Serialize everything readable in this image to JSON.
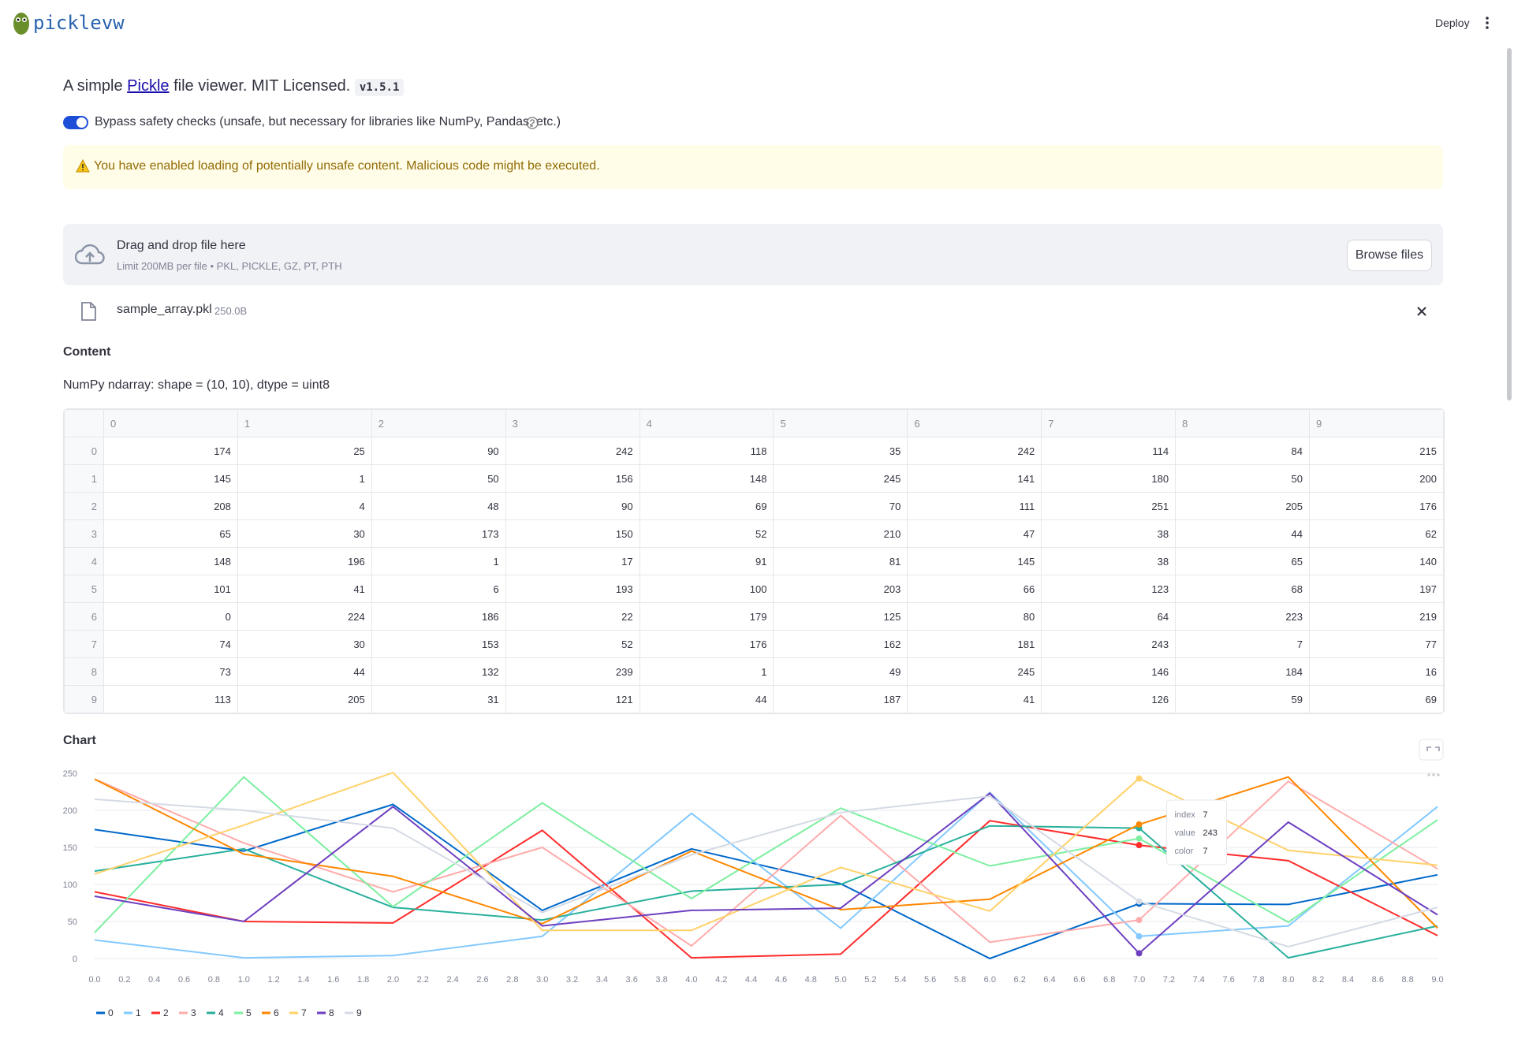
{
  "header": {
    "app_name": "picklevw",
    "deploy": "Deploy"
  },
  "intro": {
    "prefix": "A simple ",
    "link": "Pickle",
    "suffix": " file viewer. MIT Licensed.",
    "version": "v1.5.1"
  },
  "toggle": {
    "label": "Bypass safety checks (unsafe, but necessary for libraries like NumPy, Pandas, etc.)"
  },
  "warning": {
    "text": "You have enabled loading of potentially unsafe content. Malicious code might be executed."
  },
  "uploader": {
    "title": "Drag and drop file here",
    "limit": "Limit 200MB per file • PKL, PICKLE, GZ, PT, PTH",
    "button": "Browse files"
  },
  "file": {
    "name": "sample_array.pkl",
    "size": "250.0B"
  },
  "content": {
    "heading": "Content",
    "description": "NumPy ndarray: shape = (10, 10), dtype = uint8"
  },
  "table": {
    "columns": [
      0,
      1,
      2,
      3,
      4,
      5,
      6,
      7,
      8,
      9
    ],
    "index": [
      0,
      1,
      2,
      3,
      4,
      5,
      6,
      7,
      8,
      9
    ],
    "rows": [
      [
        174,
        25,
        90,
        242,
        118,
        35,
        242,
        114,
        84,
        215
      ],
      [
        145,
        1,
        50,
        156,
        148,
        245,
        141,
        180,
        50,
        200
      ],
      [
        208,
        4,
        48,
        90,
        69,
        70,
        111,
        251,
        205,
        176
      ],
      [
        65,
        30,
        173,
        150,
        52,
        210,
        47,
        38,
        44,
        62
      ],
      [
        148,
        196,
        1,
        17,
        91,
        81,
        145,
        38,
        65,
        140
      ],
      [
        101,
        41,
        6,
        193,
        100,
        203,
        66,
        123,
        68,
        197
      ],
      [
        0,
        224,
        186,
        22,
        179,
        125,
        80,
        64,
        223,
        219
      ],
      [
        74,
        30,
        153,
        52,
        176,
        162,
        181,
        243,
        7,
        77
      ],
      [
        73,
        44,
        132,
        239,
        1,
        49,
        245,
        146,
        184,
        16
      ],
      [
        113,
        205,
        31,
        121,
        44,
        187,
        41,
        126,
        59,
        69
      ]
    ]
  },
  "chart_data": {
    "type": "line",
    "title": "Chart",
    "x": [
      0,
      1,
      2,
      3,
      4,
      5,
      6,
      7,
      8,
      9
    ],
    "xlim": [
      0,
      9
    ],
    "ylim": [
      0,
      250
    ],
    "yticks": [
      0,
      50,
      100,
      150,
      200,
      250
    ],
    "grid": true,
    "legend": "bottom-left",
    "xticks": [
      {
        "value": 0,
        "label": "0.0"
      },
      {
        "value": 0.2,
        "label": "0.2"
      },
      {
        "value": 0.4,
        "label": "0.4"
      },
      {
        "value": 0.6,
        "label": "0.6"
      },
      {
        "value": 0.8,
        "label": "0.8"
      },
      {
        "value": 1,
        "label": "1.0"
      },
      {
        "value": 1.2,
        "label": "1.2"
      },
      {
        "value": 1.4,
        "label": "1.4"
      },
      {
        "value": 1.6,
        "label": "1.6"
      },
      {
        "value": 1.8,
        "label": "1.8"
      },
      {
        "value": 2,
        "label": "2.0"
      },
      {
        "value": 2.2,
        "label": "2.2"
      },
      {
        "value": 2.4,
        "label": "2.4"
      },
      {
        "value": 2.6,
        "label": "2.6"
      },
      {
        "value": 2.8,
        "label": "2.8"
      },
      {
        "value": 3,
        "label": "3.0"
      },
      {
        "value": 3.2,
        "label": "3.2"
      },
      {
        "value": 3.4,
        "label": "3.4"
      },
      {
        "value": 3.6,
        "label": "3.6"
      },
      {
        "value": 3.8,
        "label": "3.8"
      },
      {
        "value": 4,
        "label": "4.0"
      },
      {
        "value": 4.2,
        "label": "4.2"
      },
      {
        "value": 4.4,
        "label": "4.4"
      },
      {
        "value": 4.6,
        "label": "4.6"
      },
      {
        "value": 4.8,
        "label": "4.8"
      },
      {
        "value": 5,
        "label": "5.0"
      },
      {
        "value": 5.2,
        "label": "5.2"
      },
      {
        "value": 5.4,
        "label": "5.4"
      },
      {
        "value": 5.6,
        "label": "5.6"
      },
      {
        "value": 5.8,
        "label": "5.8"
      },
      {
        "value": 6,
        "label": "6.0"
      },
      {
        "value": 6.2,
        "label": "6.2"
      },
      {
        "value": 6.4,
        "label": "6.4"
      },
      {
        "value": 6.6,
        "label": "6.6"
      },
      {
        "value": 6.8,
        "label": "6.8"
      },
      {
        "value": 7,
        "label": "7.0"
      },
      {
        "value": 7.2,
        "label": "7.2"
      },
      {
        "value": 7.4,
        "label": "7.4"
      },
      {
        "value": 7.6,
        "label": "7.6"
      },
      {
        "value": 7.8,
        "label": "7.8"
      },
      {
        "value": 8,
        "label": "8.0"
      },
      {
        "value": 8.2,
        "label": "8.2"
      },
      {
        "value": 8.4,
        "label": "8.4"
      },
      {
        "value": 8.6,
        "label": "8.6"
      },
      {
        "value": 8.8,
        "label": "8.8"
      },
      {
        "value": 9,
        "label": "9.0"
      }
    ],
    "series": [
      {
        "name": "0",
        "color": "#0068c9",
        "values": [
          174,
          145,
          208,
          65,
          148,
          101,
          0,
          74,
          73,
          113
        ]
      },
      {
        "name": "1",
        "color": "#83c9ff",
        "values": [
          25,
          1,
          4,
          30,
          196,
          41,
          224,
          30,
          44,
          205
        ]
      },
      {
        "name": "2",
        "color": "#ff2b2b",
        "values": [
          90,
          50,
          48,
          173,
          1,
          6,
          186,
          153,
          132,
          31
        ]
      },
      {
        "name": "3",
        "color": "#ffabab",
        "values": [
          242,
          156,
          90,
          150,
          17,
          193,
          22,
          52,
          239,
          121
        ]
      },
      {
        "name": "4",
        "color": "#29b09d",
        "values": [
          118,
          148,
          69,
          52,
          91,
          100,
          179,
          176,
          1,
          44
        ]
      },
      {
        "name": "5",
        "color": "#7defa1",
        "values": [
          35,
          245,
          70,
          210,
          81,
          203,
          125,
          162,
          49,
          187
        ]
      },
      {
        "name": "6",
        "color": "#ff8700",
        "values": [
          242,
          141,
          111,
          47,
          145,
          66,
          80,
          181,
          245,
          41
        ]
      },
      {
        "name": "7",
        "color": "#ffd16a",
        "values": [
          114,
          180,
          251,
          38,
          38,
          123,
          64,
          243,
          146,
          126
        ]
      },
      {
        "name": "8",
        "color": "#6d3fc0",
        "values": [
          84,
          50,
          205,
          44,
          65,
          68,
          223,
          7,
          184,
          59
        ]
      },
      {
        "name": "9",
        "color": "#d5dae5",
        "values": [
          215,
          200,
          176,
          62,
          140,
          197,
          219,
          77,
          16,
          69
        ]
      }
    ],
    "tooltip": {
      "index_label": "index",
      "index": 7,
      "value_label": "value",
      "value": 243,
      "color_label": "color",
      "color": 7
    }
  }
}
